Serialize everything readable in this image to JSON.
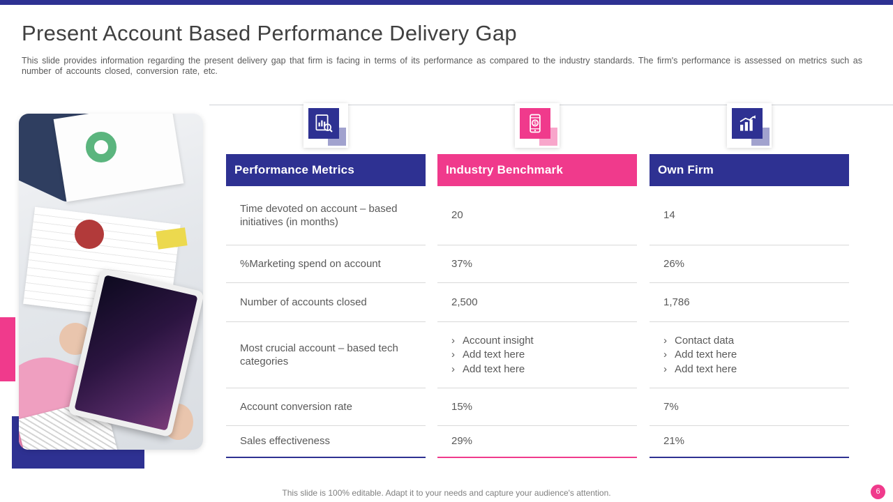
{
  "slide": {
    "title": "Present Account Based Performance Delivery Gap",
    "subtitle": "This slide provides information regarding the present delivery gap that firm is facing in terms of its performance as compared to the industry standards. The firm's performance is assessed on metrics such as number of accounts closed, conversion rate, etc.",
    "footer_note": "This slide is 100% editable. Adapt it to your needs and capture your audience's attention.",
    "page_number": "6"
  },
  "colors": {
    "navy": "#2e3192",
    "pink": "#f03a8c",
    "title_text": "#404040",
    "body_text": "#595959",
    "row_border": "#d9d9d9"
  },
  "icons": [
    {
      "name": "report-analysis-icon",
      "accent": "#2e3192"
    },
    {
      "name": "mobile-payment-icon",
      "accent": "#f03a8c"
    },
    {
      "name": "growth-chart-icon",
      "accent": "#2e3192"
    }
  ],
  "table": {
    "bullet_marker": "›",
    "columns": [
      {
        "label": "Performance Metrics",
        "field": "metric",
        "accent": "#2e3192"
      },
      {
        "label": "Industry Benchmark",
        "field": "benchmark",
        "accent": "#f03a8c"
      },
      {
        "label": "Own Firm",
        "field": "own",
        "accent": "#2e3192"
      }
    ],
    "rows": [
      {
        "metric": "Time devoted on account – based initiatives (in months)",
        "benchmark": "20",
        "own": "14"
      },
      {
        "metric": "%Marketing spend on account",
        "benchmark": "37%",
        "own": "26%"
      },
      {
        "metric": "Number of accounts closed",
        "benchmark": "2,500",
        "own": "1,786"
      },
      {
        "metric": "Most crucial account – based tech categories",
        "benchmark": [
          "Account insight",
          "Add text here",
          "Add text here"
        ],
        "own": [
          "Contact data",
          "Add text here",
          "Add text here"
        ]
      },
      {
        "metric": "Account conversion rate",
        "benchmark": "15%",
        "own": "7%"
      },
      {
        "metric": "Sales effectiveness",
        "benchmark": "29%",
        "own": "21%"
      }
    ]
  }
}
